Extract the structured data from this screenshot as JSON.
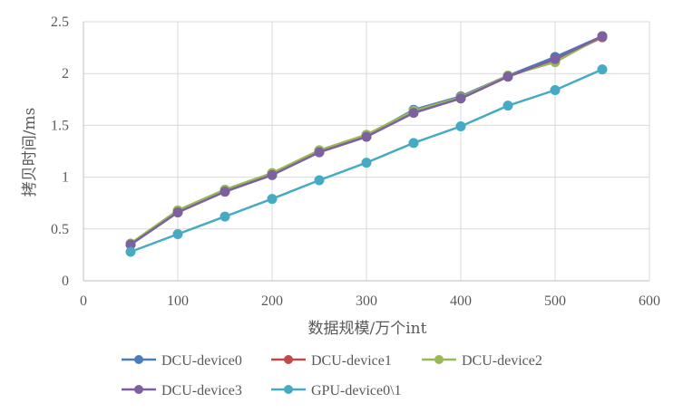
{
  "chart_data": {
    "type": "line",
    "title": "",
    "xlabel": "数据规模/万个int",
    "ylabel": "拷贝时间/ms",
    "xlim": [
      0,
      600
    ],
    "ylim": [
      0,
      2.5
    ],
    "xticks": [
      "0",
      "100",
      "200",
      "300",
      "400",
      "500",
      "600"
    ],
    "yticks": [
      "0",
      "0.5",
      "1",
      "1.5",
      "2",
      "2.5"
    ],
    "grid": true,
    "legend_position": "bottom",
    "x": [
      50,
      100,
      150,
      200,
      250,
      300,
      350,
      400,
      450,
      500,
      550
    ],
    "series": [
      {
        "name": "DCU-device0",
        "color": "#4a7ebb",
        "values": [
          0.35,
          0.66,
          0.87,
          1.03,
          1.25,
          1.4,
          1.65,
          1.78,
          1.98,
          2.16,
          2.36
        ]
      },
      {
        "name": "DCU-device1",
        "color": "#be4b48",
        "values": [
          0.35,
          0.67,
          0.86,
          1.03,
          1.24,
          1.39,
          1.63,
          1.76,
          1.97,
          2.13,
          2.35
        ]
      },
      {
        "name": "DCU-device2",
        "color": "#98b954",
        "values": [
          0.36,
          0.68,
          0.88,
          1.04,
          1.26,
          1.41,
          1.64,
          1.77,
          1.98,
          2.11,
          2.36
        ]
      },
      {
        "name": "DCU-device3",
        "color": "#7d60a0",
        "values": [
          0.35,
          0.66,
          0.86,
          1.02,
          1.24,
          1.39,
          1.62,
          1.76,
          1.97,
          2.14,
          2.36
        ]
      },
      {
        "name": "GPU-device0\\1",
        "color": "#46aac5",
        "values": [
          0.28,
          0.45,
          0.62,
          0.79,
          0.97,
          1.14,
          1.33,
          1.49,
          1.69,
          1.84,
          2.04
        ]
      }
    ]
  }
}
